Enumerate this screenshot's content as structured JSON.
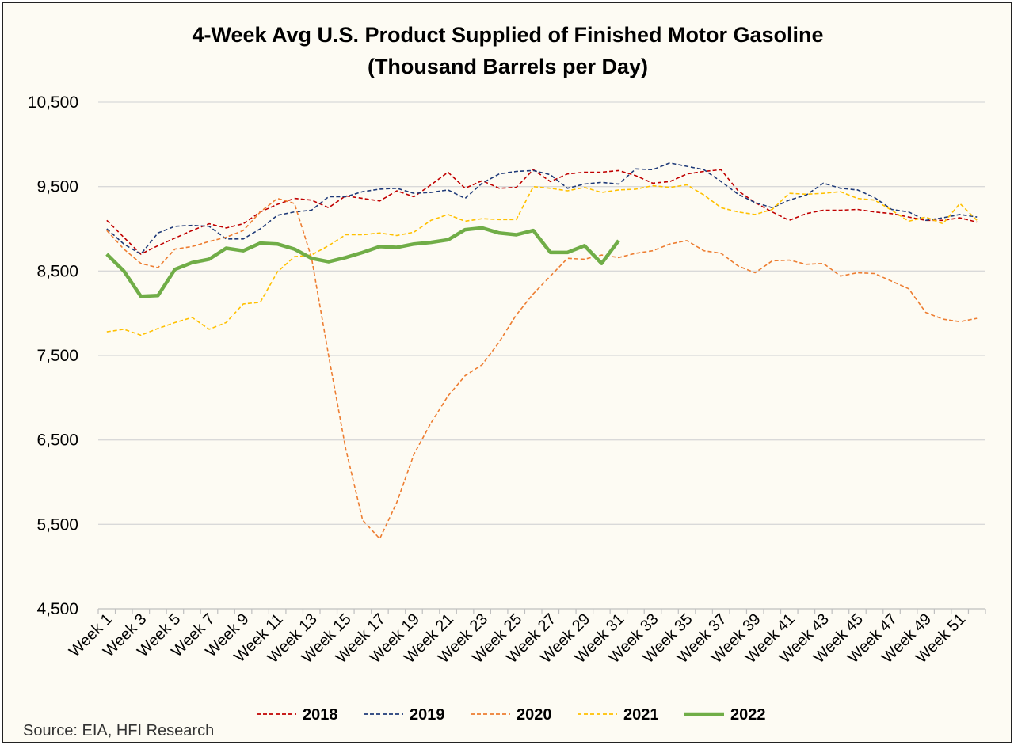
{
  "chart_data": {
    "type": "line",
    "title": "4-Week Avg U.S. Product Supplied of Finished Motor Gasoline",
    "subtitle": "(Thousand Barrels per Day)",
    "source": "Source: EIA, HFI Research",
    "xlabel": "",
    "ylabel": "",
    "ylim": [
      4500,
      10500
    ],
    "y_ticks": [
      4500,
      5500,
      6500,
      7500,
      8500,
      9500,
      10500
    ],
    "y_tick_labels": [
      "4,500",
      "5,500",
      "6,500",
      "7,500",
      "8,500",
      "9,500",
      "10,500"
    ],
    "x_tick_labels": [
      "Week 1",
      "Week 3",
      "Week 5",
      "Week 7",
      "Week 9",
      "Week 11",
      "Week 13",
      "Week 15",
      "Week 17",
      "Week 19",
      "Week 21",
      "Week 23",
      "Week 25",
      "Week 27",
      "Week 29",
      "Week 31",
      "Week 33",
      "Week 35",
      "Week 37",
      "Week 39",
      "Week 41",
      "Week 43",
      "Week 45",
      "Week 47",
      "Week 49",
      "Week 51"
    ],
    "grid": "horizontal",
    "legend_position": "bottom",
    "series": [
      {
        "name": "2018",
        "color": "#c00000",
        "style": "dashed",
        "values": [
          9100,
          8900,
          8700,
          8800,
          8890,
          8980,
          9060,
          9010,
          9060,
          9200,
          9290,
          9360,
          9340,
          9250,
          9390,
          9360,
          9330,
          9450,
          9380,
          9520,
          9670,
          9480,
          9570,
          9480,
          9490,
          9700,
          9560,
          9650,
          9670,
          9670,
          9690,
          9630,
          9540,
          9560,
          9650,
          9680,
          9700,
          9450,
          9310,
          9200,
          9100,
          9180,
          9220,
          9220,
          9230,
          9200,
          9180,
          9140,
          9100,
          9100,
          9130,
          9080
        ]
      },
      {
        "name": "2019",
        "color": "#1f3a78",
        "style": "dashed",
        "values": [
          9000,
          8820,
          8700,
          8950,
          9030,
          9040,
          9030,
          8880,
          8880,
          9000,
          9160,
          9200,
          9220,
          9380,
          9380,
          9440,
          9470,
          9480,
          9420,
          9430,
          9460,
          9360,
          9540,
          9650,
          9680,
          9690,
          9640,
          9480,
          9530,
          9550,
          9530,
          9710,
          9700,
          9780,
          9740,
          9700,
          9560,
          9410,
          9310,
          9250,
          9340,
          9400,
          9540,
          9480,
          9460,
          9370,
          9230,
          9200,
          9100,
          9130,
          9170,
          9140
        ]
      },
      {
        "name": "2020",
        "color": "#ed7d31",
        "style": "dashed",
        "values": [
          8980,
          8760,
          8590,
          8540,
          8760,
          8790,
          8850,
          8900,
          8980,
          9200,
          9360,
          9300,
          8660,
          7500,
          6400,
          5550,
          5330,
          5760,
          6330,
          6700,
          7020,
          7260,
          7390,
          7660,
          7980,
          8230,
          8440,
          8650,
          8640,
          8690,
          8660,
          8710,
          8740,
          8820,
          8860,
          8740,
          8710,
          8560,
          8480,
          8620,
          8630,
          8580,
          8590,
          8440,
          8480,
          8470,
          8380,
          8290,
          8010,
          7930,
          7900,
          7940
        ]
      },
      {
        "name": "2021",
        "color": "#ffc000",
        "style": "dashed",
        "values": [
          7780,
          7810,
          7740,
          7820,
          7890,
          7950,
          7810,
          7890,
          8110,
          8130,
          8490,
          8670,
          8690,
          8800,
          8930,
          8930,
          8950,
          8920,
          8960,
          9100,
          9170,
          9090,
          9120,
          9110,
          9110,
          9500,
          9480,
          9450,
          9490,
          9430,
          9460,
          9470,
          9510,
          9490,
          9520,
          9400,
          9250,
          9200,
          9170,
          9230,
          9420,
          9410,
          9420,
          9440,
          9360,
          9340,
          9220,
          9090,
          9140,
          9060,
          9300,
          9100
        ]
      },
      {
        "name": "2022",
        "color": "#70ad47",
        "style": "solid",
        "values": [
          8700,
          8500,
          8200,
          8210,
          8520,
          8600,
          8640,
          8770,
          8740,
          8830,
          8820,
          8760,
          8650,
          8610,
          8660,
          8720,
          8790,
          8780,
          8820,
          8840,
          8870,
          8990,
          9010,
          8950,
          8930,
          8980,
          8720,
          8720,
          8800,
          8590,
          8860
        ]
      }
    ]
  }
}
